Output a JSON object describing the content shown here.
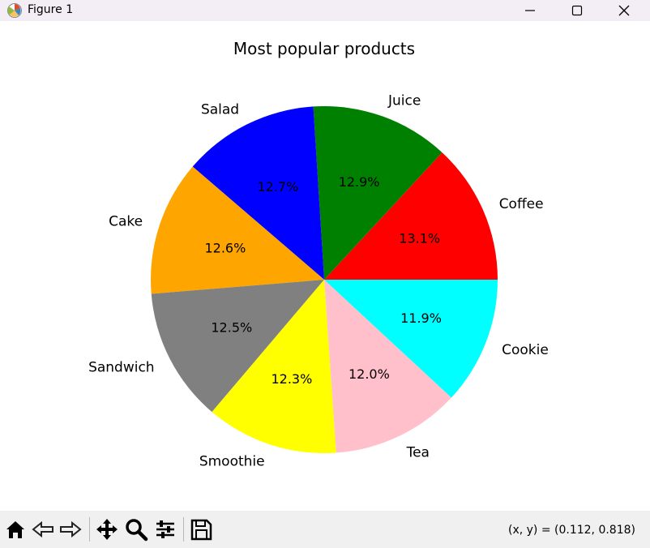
{
  "window": {
    "title": "Figure 1",
    "buttons": [
      "minimize",
      "maximize",
      "close"
    ]
  },
  "toolbar": {
    "icons": [
      "home-icon",
      "back-icon",
      "forward-icon",
      "pan-icon",
      "zoom-icon",
      "configure-icon",
      "save-icon"
    ],
    "coords": "(x, y) = (0.112, 0.818)"
  },
  "chart_data": {
    "type": "pie",
    "title": "Most popular products",
    "start_angle_deg": 0,
    "direction": "counterclockwise",
    "autopct_format": "%1.1f%%",
    "slices": [
      {
        "label": "Coffee",
        "value": 13.1,
        "pct": "13.1%",
        "color": "#ff0000"
      },
      {
        "label": "Juice",
        "value": 12.9,
        "pct": "12.9%",
        "color": "#008000"
      },
      {
        "label": "Salad",
        "value": 12.7,
        "pct": "12.7%",
        "color": "#0000ff"
      },
      {
        "label": "Cake",
        "value": 12.6,
        "pct": "12.6%",
        "color": "#ffa500"
      },
      {
        "label": "Sandwich",
        "value": 12.5,
        "pct": "12.5%",
        "color": "#808080"
      },
      {
        "label": "Smoothie",
        "value": 12.3,
        "pct": "12.3%",
        "color": "#ffff00"
      },
      {
        "label": "Tea",
        "value": 12.0,
        "pct": "12.0%",
        "color": "#ffc0cb"
      },
      {
        "label": "Cookie",
        "value": 11.9,
        "pct": "11.9%",
        "color": "#00ffff"
      }
    ]
  }
}
